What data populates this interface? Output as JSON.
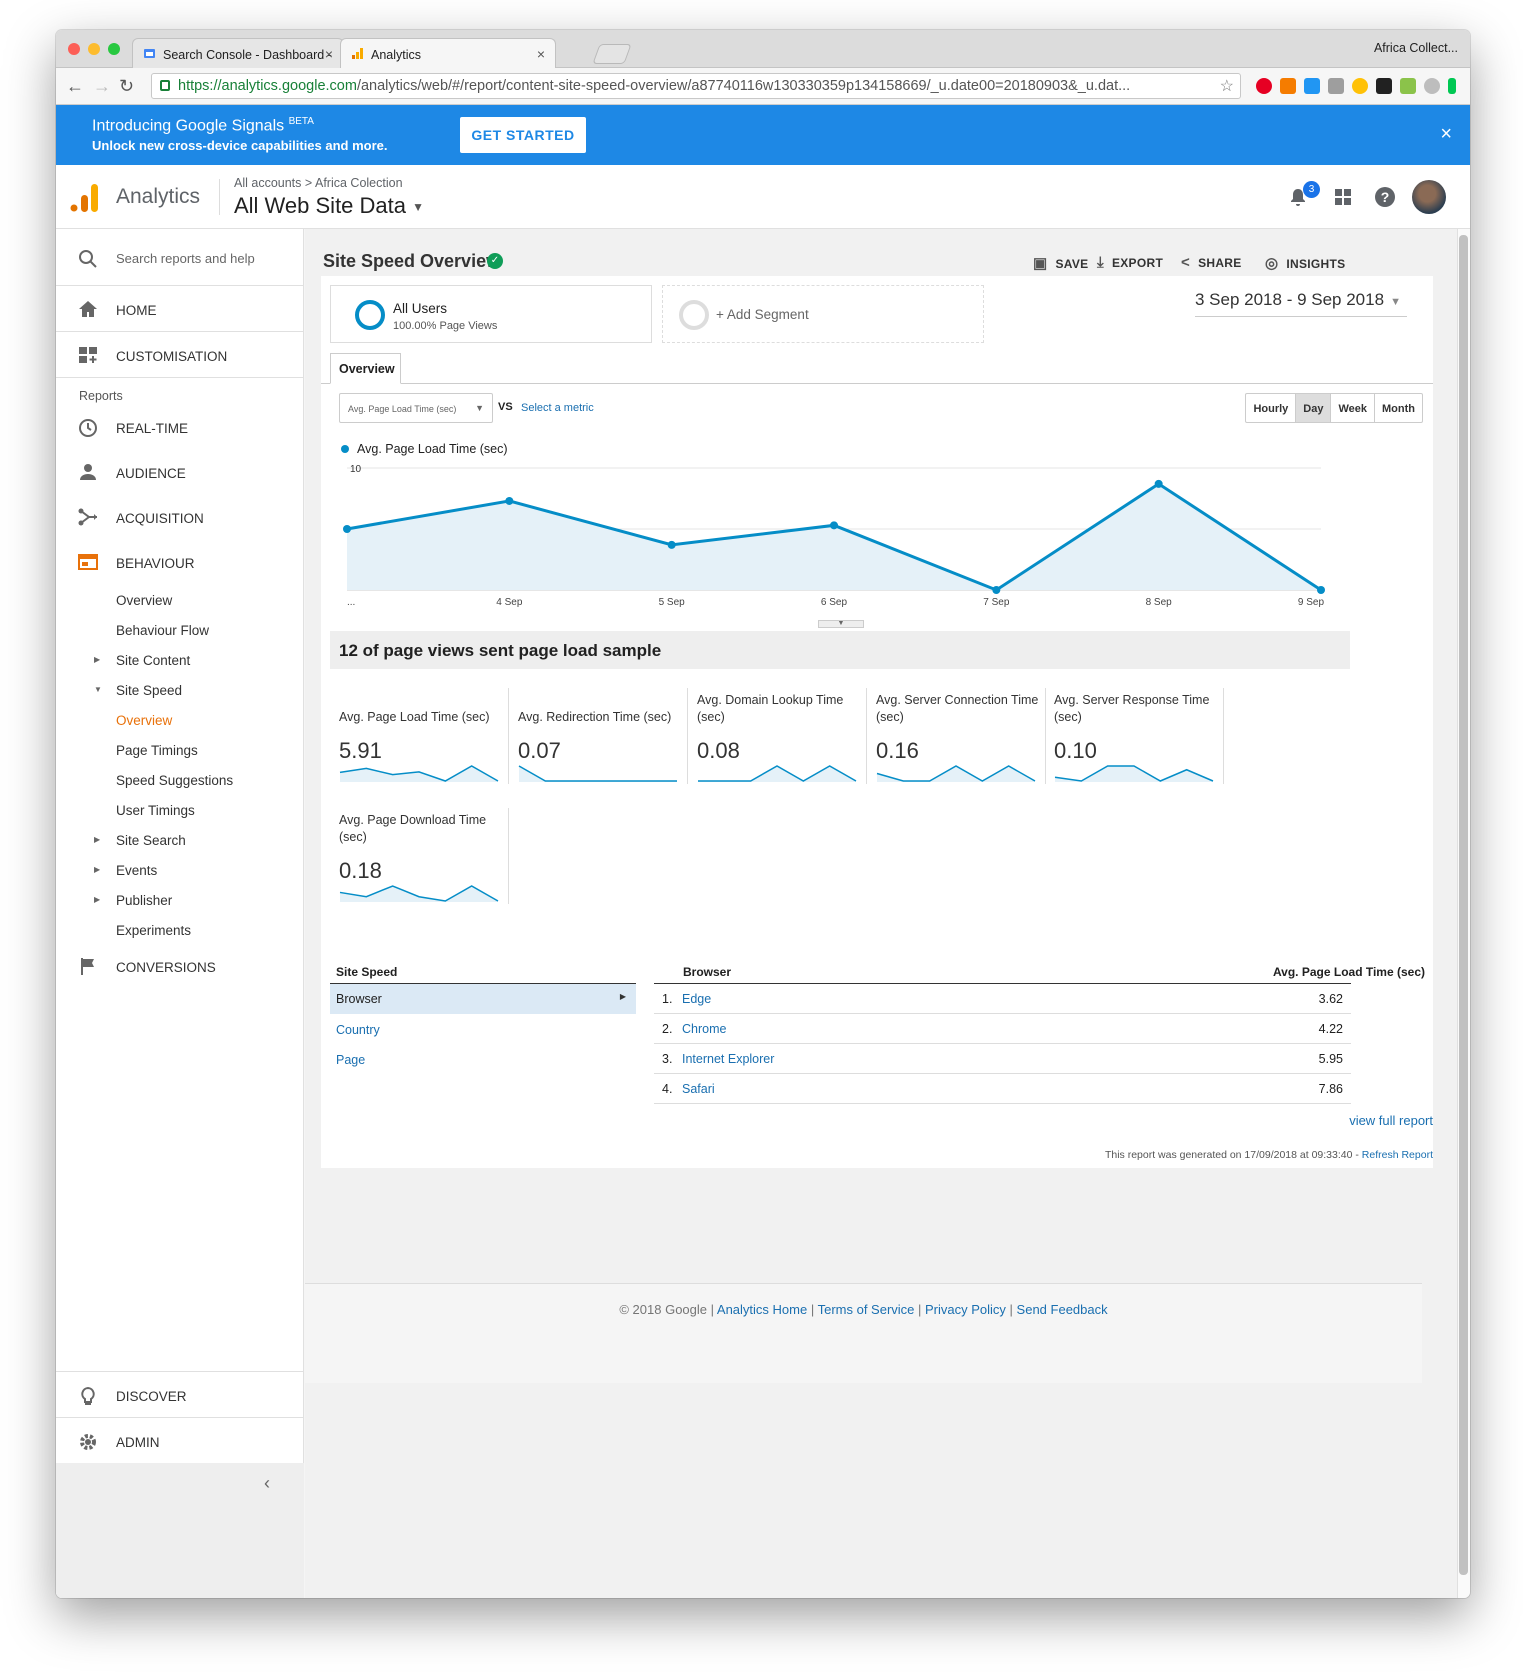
{
  "browser": {
    "tabs": [
      {
        "title": "Search Console - Dashboard -"
      },
      {
        "title": "Analytics"
      }
    ],
    "profile": "Africa Collect...",
    "url_host": "https://analytics.google.com",
    "url_path": "/analytics/web/#/report/content-site-speed-overview/a87740116w130330359p134158669/_u.date00=20180903&_u.dat..."
  },
  "banner": {
    "title": "Introducing Google Signals",
    "beta": "BETA",
    "subtitle": "Unlock new cross-device capabilities and more.",
    "button": "GET STARTED",
    "close": "×"
  },
  "header": {
    "app_name": "Analytics",
    "crumb_root": "All accounts",
    "crumb_sep": ">",
    "crumb_account": "Africa Colection",
    "property": "All Web Site Data",
    "notifications": "3"
  },
  "sidebar": {
    "search_placeholder": "Search reports and help",
    "home": "HOME",
    "customisation": "CUSTOMISATION",
    "reports_label": "Reports",
    "realtime": "REAL-TIME",
    "audience": "AUDIENCE",
    "acquisition": "ACQUISITION",
    "behaviour": "BEHAVIOUR",
    "behaviour_items": {
      "overview": "Overview",
      "flow": "Behaviour Flow",
      "site_content": "Site Content",
      "site_speed": "Site Speed",
      "speed_overview": "Overview",
      "page_timings": "Page Timings",
      "speed_suggestions": "Speed Suggestions",
      "user_timings": "User Timings",
      "site_search": "Site Search",
      "events": "Events",
      "publisher": "Publisher",
      "experiments": "Experiments"
    },
    "conversions": "CONVERSIONS",
    "discover": "DISCOVER",
    "admin": "ADMIN"
  },
  "report": {
    "title": "Site Speed Overview",
    "actions": {
      "save": "SAVE",
      "export": "EXPORT",
      "share": "SHARE",
      "insights": "INSIGHTS"
    },
    "segment_name": "All Users",
    "segment_detail": "100.00% Page Views",
    "add_segment": "+ Add Segment",
    "date_range": "3 Sep 2018 - 9 Sep 2018",
    "tab": "Overview",
    "metric_select": "Avg. Page Load Time (sec)",
    "vs": "VS",
    "select_metric": "Select a metric",
    "granularity": [
      "Hourly",
      "Day",
      "Week",
      "Month"
    ],
    "granularity_selected": "Day",
    "legend": "Avg. Page Load Time (sec)",
    "sample_text": "12 of page views sent page load sample"
  },
  "chart_data": {
    "type": "area",
    "series": [
      {
        "name": "Avg. Page Load Time (sec)",
        "values": [
          5,
          7.3,
          3.7,
          5.3,
          0,
          8.7,
          0
        ]
      }
    ],
    "categories": [
      "...",
      "4 Sep",
      "5 Sep",
      "6 Sep",
      "7 Sep",
      "8 Sep",
      "9 Sep"
    ],
    "y_ticks": [
      "10",
      "5"
    ],
    "ylim": [
      0,
      10
    ],
    "color": "#058dc7"
  },
  "metrics": [
    {
      "label": "Avg. Page Load Time (sec)",
      "value": "5.91",
      "spark": [
        5,
        7.3,
        3.7,
        5.3,
        0,
        8.7,
        0
      ]
    },
    {
      "label": "Avg. Redirection Time (sec)",
      "value": "0.07",
      "spark": [
        0.5,
        0,
        0,
        0,
        0,
        0,
        0
      ]
    },
    {
      "label": "Avg. Domain Lookup Time (sec)",
      "value": "0.08",
      "spark": [
        0,
        0,
        0,
        0.2,
        0,
        0.2,
        0
      ]
    },
    {
      "label": "Avg. Server Connection Time (sec)",
      "value": "0.16",
      "spark": [
        0.2,
        0,
        0,
        0.4,
        0,
        0.4,
        0
      ]
    },
    {
      "label": "Avg. Server Response Time (sec)",
      "value": "0.10",
      "spark": [
        0.05,
        0,
        0.2,
        0.2,
        0,
        0.15,
        0
      ]
    },
    {
      "label": "Avg. Page Download Time (sec)",
      "value": "0.18",
      "spark": [
        0.2,
        0.1,
        0.35,
        0.1,
        0,
        0.35,
        0
      ]
    }
  ],
  "dimensions": {
    "header": "Site Speed",
    "items": [
      "Browser",
      "Country",
      "Page"
    ],
    "selected": "Browser"
  },
  "table": {
    "col1": "Browser",
    "col2": "Avg. Page Load Time (sec)",
    "rows": [
      {
        "rank": "1.",
        "name": "Edge",
        "value": "3.62"
      },
      {
        "rank": "2.",
        "name": "Chrome",
        "value": "4.22"
      },
      {
        "rank": "3.",
        "name": "Internet Explorer",
        "value": "5.95"
      },
      {
        "rank": "4.",
        "name": "Safari",
        "value": "7.86"
      }
    ],
    "full_report": "view full report",
    "generated": "This report was generated on 17/09/2018 at 09:33:40 -",
    "refresh": "Refresh Report"
  },
  "footer": {
    "copyright": "© 2018 Google",
    "links": [
      "Analytics Home",
      "Terms of Service",
      "Privacy Policy",
      "Send Feedback"
    ]
  }
}
